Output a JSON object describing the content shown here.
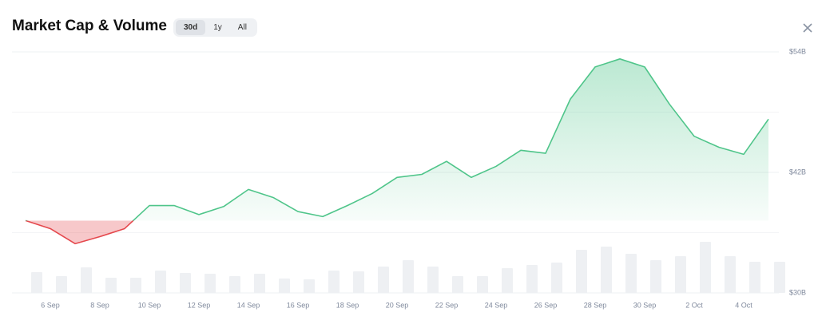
{
  "title": "Market Cap & Volume",
  "ranges": [
    "30d",
    "1y",
    "All"
  ],
  "active_range": "30d",
  "chart_data": {
    "type": "line",
    "categories": [
      null,
      "6 Sep",
      null,
      "8 Sep",
      null,
      "10 Sep",
      null,
      "12 Sep",
      null,
      "14 Sep",
      null,
      "16 Sep",
      null,
      "18 Sep",
      null,
      "20 Sep",
      null,
      "22 Sep",
      null,
      "24 Sep",
      null,
      "26 Sep",
      null,
      "28 Sep",
      null,
      "30 Sep",
      null,
      "2 Oct",
      null,
      "4 Oct",
      null
    ],
    "series": [
      {
        "name": "Market Cap",
        "color": "#4fc58a",
        "values": [
          37.2,
          36.4,
          34.9,
          35.6,
          36.4,
          38.7,
          38.7,
          37.8,
          38.6,
          40.3,
          39.5,
          38.1,
          37.6,
          38.7,
          39.9,
          41.5,
          41.8,
          43.1,
          41.5,
          42.6,
          44.2,
          43.9,
          49.3,
          52.5,
          53.3,
          52.5,
          48.8,
          45.6,
          44.5,
          43.8,
          47.3
        ]
      },
      {
        "name": "Volume",
        "color": "#eef0f3",
        "values": [
          26,
          21,
          32,
          19,
          19,
          28,
          25,
          24,
          21,
          24,
          18,
          17,
          28,
          27,
          33,
          41,
          33,
          21,
          21,
          31,
          35,
          38,
          54,
          58,
          49,
          41,
          46,
          64,
          46,
          39,
          39
        ]
      }
    ],
    "down_color": "#e5484d",
    "ylim": [
      30,
      54
    ],
    "yticks": [
      {
        "value": 54,
        "label": "$54B"
      },
      {
        "value": 42,
        "label": "$42B"
      },
      {
        "value": 30,
        "label": "$30B"
      }
    ],
    "grid": true
  }
}
